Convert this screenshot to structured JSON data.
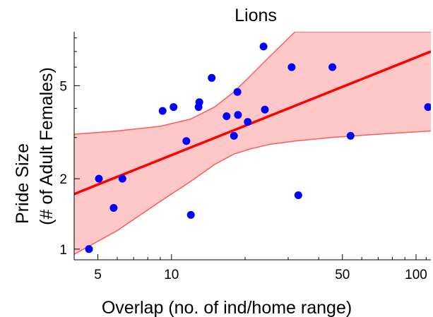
{
  "chart_data": {
    "type": "scatter",
    "title": "Lions",
    "xlabel": "Overlap (no. of ind/home range)",
    "ylabel_lines": [
      "Pride Size",
      "(# of Adult Females)"
    ],
    "x_scale": "log",
    "y_scale": "log",
    "xlim": [
      4,
      115
    ],
    "ylim": [
      0.9,
      8.5
    ],
    "x_ticks": [
      5,
      10,
      50,
      100
    ],
    "x_tick_labels": [
      "5",
      "10",
      "50",
      "100"
    ],
    "y_ticks": [
      1,
      2,
      5
    ],
    "y_tick_labels": [
      "1",
      "2",
      "5"
    ],
    "grid": false,
    "points": [
      {
        "x": 4.6,
        "y": 1.0
      },
      {
        "x": 5.05,
        "y": 2.0
      },
      {
        "x": 5.8,
        "y": 1.5
      },
      {
        "x": 6.3,
        "y": 2.0
      },
      {
        "x": 9.2,
        "y": 3.9
      },
      {
        "x": 10.2,
        "y": 4.05
      },
      {
        "x": 11.5,
        "y": 2.9
      },
      {
        "x": 12.0,
        "y": 1.4
      },
      {
        "x": 12.9,
        "y": 4.05
      },
      {
        "x": 13.0,
        "y": 4.25
      },
      {
        "x": 14.6,
        "y": 5.4
      },
      {
        "x": 16.8,
        "y": 3.7
      },
      {
        "x": 18.0,
        "y": 3.05
      },
      {
        "x": 18.6,
        "y": 4.7
      },
      {
        "x": 18.7,
        "y": 3.75
      },
      {
        "x": 20.5,
        "y": 3.5
      },
      {
        "x": 23.8,
        "y": 7.35
      },
      {
        "x": 24.1,
        "y": 3.95
      },
      {
        "x": 31.0,
        "y": 6.0
      },
      {
        "x": 33.0,
        "y": 1.7
      },
      {
        "x": 45.5,
        "y": 6.0
      },
      {
        "x": 54.0,
        "y": 3.05
      },
      {
        "x": 112.0,
        "y": 4.05
      }
    ],
    "fit": {
      "x": [
        4,
        115
      ],
      "y": [
        1.72,
        7.0
      ]
    },
    "band": {
      "x": [
        4,
        6,
        9,
        12,
        15,
        18,
        21,
        25,
        32,
        45,
        70,
        115
      ],
      "upper": [
        3.1,
        3.2,
        3.35,
        3.6,
        4.05,
        4.7,
        5.5,
        6.6,
        8.5,
        8.5,
        8.5,
        8.5
      ],
      "lower": [
        0.95,
        1.2,
        1.6,
        1.95,
        2.3,
        2.55,
        2.68,
        2.8,
        2.9,
        3.0,
        3.1,
        3.2
      ]
    },
    "colors": {
      "points": "#0000ff",
      "fit": "#ff0000",
      "band_fill": "#ffc8c8",
      "band_edge": "#ff5a5a",
      "axis": "#000000"
    }
  }
}
